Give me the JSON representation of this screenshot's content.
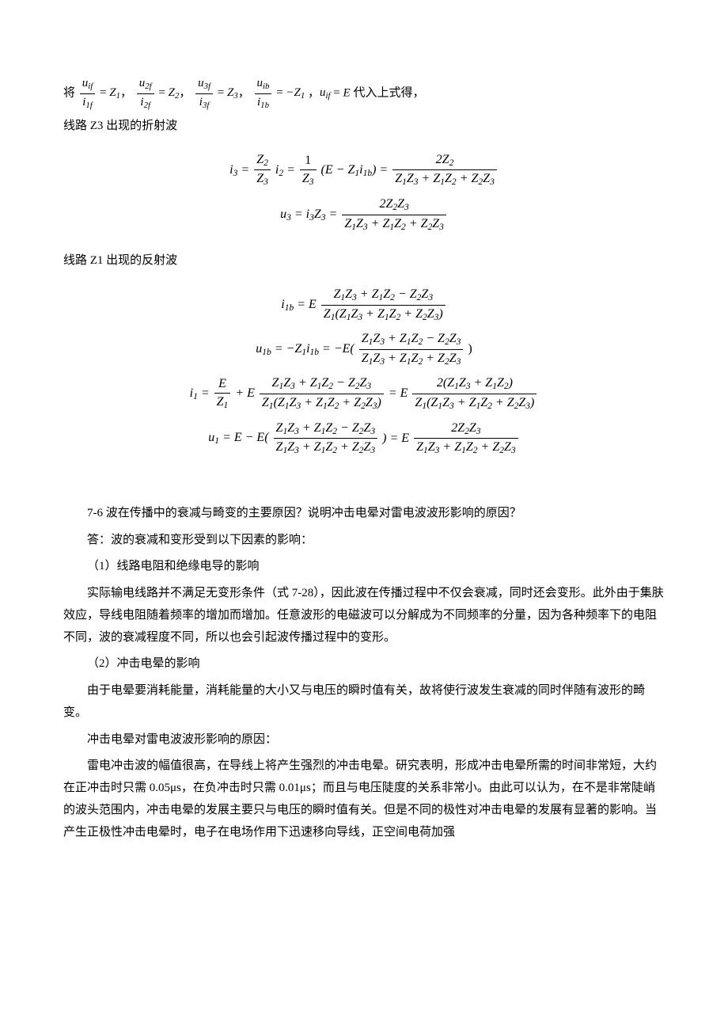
{
  "colors": {
    "text": "#000000",
    "background": "#ffffff"
  },
  "typography": {
    "body_font": "SimSun",
    "math_font": "Times New Roman",
    "body_size_pt": 11,
    "math_size_pt": 12
  },
  "intro_line": {
    "prefix": "将",
    "terms": [
      {
        "num": "u<sub>if</sub>",
        "den": "i<sub>1f</sub>",
        "rhs": "Z<sub>1</sub>"
      },
      {
        "num": "u<sub>2f</sub>",
        "den": "i<sub>2f</sub>",
        "rhs": "Z<sub>2</sub>"
      },
      {
        "num": "u<sub>3f</sub>",
        "den": "i<sub>3f</sub>",
        "rhs": "Z<sub>3</sub>"
      },
      {
        "num": "u<sub>ib</sub>",
        "den": "i<sub>1b</sub>",
        "rhs": "−Z<sub>1</sub>"
      }
    ],
    "tail": "，<span class=\"italic\">u<sub>if</sub></span> = <span class=\"italic\">E</span> 代入上式得，"
  },
  "label_z3": "线路 Z3 出现的折射波",
  "eq_z3_a": {
    "lhs": "i<sub>3</sub> =",
    "frac1": {
      "num": "Z<sub>2</sub>",
      "den": "Z<sub>3</sub>"
    },
    "mid1": "i<sub>2</sub> =",
    "frac2": {
      "num": "1",
      "den": "Z<sub>3</sub>"
    },
    "mid2": "(E − Z<sub>1</sub>i<sub>1b</sub>) =",
    "frac3": {
      "num": "2Z<sub>2</sub>",
      "den": "Z<sub>1</sub>Z<sub>3</sub> + Z<sub>1</sub>Z<sub>2</sub> + Z<sub>2</sub>Z<sub>3</sub>"
    }
  },
  "eq_z3_b": {
    "lhs": "u<sub>3</sub> = i<sub>3</sub>Z<sub>3</sub> =",
    "frac": {
      "num": "2Z<sub>2</sub>Z<sub>3</sub>",
      "den": "Z<sub>1</sub>Z<sub>3</sub> + Z<sub>1</sub>Z<sub>2</sub> + Z<sub>2</sub>Z<sub>3</sub>"
    }
  },
  "label_z1": "线路 Z1 出现的反射波",
  "eq_z1_a": {
    "lhs": "i<sub>1b</sub> = E",
    "frac": {
      "num": "Z<sub>1</sub>Z<sub>3</sub> + Z<sub>1</sub>Z<sub>2</sub> − Z<sub>2</sub>Z<sub>3</sub>",
      "den": "Z<sub>1</sub>(Z<sub>1</sub>Z<sub>3</sub> + Z<sub>1</sub>Z<sub>2</sub> + Z<sub>2</sub>Z<sub>3</sub>)"
    }
  },
  "eq_z1_b": {
    "lhs": "u<sub>1b</sub> = −Z<sub>1</sub>i<sub>1b</sub> = −E(",
    "frac": {
      "num": "Z<sub>1</sub>Z<sub>3</sub> + Z<sub>1</sub>Z<sub>2</sub> − Z<sub>2</sub>Z<sub>3</sub>",
      "den": "Z<sub>1</sub>Z<sub>3</sub> + Z<sub>1</sub>Z<sub>2</sub> + Z<sub>2</sub>Z<sub>3</sub>"
    },
    "tail": ")"
  },
  "eq_z1_c": {
    "lhs": "i<sub>1</sub> =",
    "frac1": {
      "num": "E",
      "den": "Z<sub>1</sub>"
    },
    "mid1": "+ E",
    "frac2": {
      "num": "Z<sub>1</sub>Z<sub>3</sub> + Z<sub>1</sub>Z<sub>2</sub> − Z<sub>2</sub>Z<sub>3</sub>",
      "den": "Z<sub>1</sub>(Z<sub>1</sub>Z<sub>3</sub> + Z<sub>1</sub>Z<sub>2</sub> + Z<sub>2</sub>Z<sub>3</sub>)"
    },
    "mid2": "= E",
    "frac3": {
      "num": "2(Z<sub>1</sub>Z<sub>3</sub> + Z<sub>1</sub>Z<sub>2</sub>)",
      "den": "Z<sub>1</sub>(Z<sub>1</sub>Z<sub>3</sub> + Z<sub>1</sub>Z<sub>2</sub> + Z<sub>2</sub>Z<sub>3</sub>)"
    }
  },
  "eq_z1_d": {
    "lhs": "u<sub>1</sub> = E − E(",
    "frac1": {
      "num": "Z<sub>1</sub>Z<sub>3</sub> + Z<sub>1</sub>Z<sub>2</sub> − Z<sub>2</sub>Z<sub>3</sub>",
      "den": "Z<sub>1</sub>Z<sub>3</sub> + Z<sub>1</sub>Z<sub>2</sub> + Z<sub>2</sub>Z<sub>3</sub>"
    },
    "mid": ") = E",
    "frac2": {
      "num": "2Z<sub>2</sub>Z<sub>3</sub>",
      "den": "Z<sub>1</sub>Z<sub>3</sub> + Z<sub>1</sub>Z<sub>2</sub> + Z<sub>2</sub>Z<sub>3</sub>"
    }
  },
  "q76": "7-6 波在传播中的衰减与畸变的主要原因？说明冲击电晕对雷电波波形影响的原因？",
  "ans_lead": "答：波的衰减和变形受到以下因素的影响：",
  "sec1_title": "（1）线路电阻和绝缘电导的影响",
  "sec1_body": "实际输电线路并不满足无变形条件（式 7-28），因此波在传播过程中不仅会衰减，同时还会变形。此外由于集肤效应，导线电阻随着频率的增加而增加。任意波形的电磁波可以分解成为不同频率的分量，因为各种频率下的电阻不同，波的衰减程度不同，所以也会引起波传播过程中的变形。",
  "sec2_title": "（2）冲击电晕的影响",
  "sec2_body": "由于电晕要消耗能量，消耗能量的大小又与电压的瞬时值有关，故将使行波发生衰减的同时伴随有波形的畸变。",
  "reason_title": "冲击电晕对雷电波波形影响的原因：",
  "reason_body_a": "雷电冲击波的幅值很高，在导线上将产生强烈的冲击电晕。研究表明，形成冲击电晕所需的时间非常短，大约在正冲击时只需 0.05",
  "reason_body_b": "，在负冲击时只需 0.01",
  "reason_body_c": "；而且与电压陡度的关系非常小。由此可以认为，在不是非常陡峭的波头范围内，冲击电晕的发展主要只与电压的瞬时值有关。但是不同的极性对冲击电晕的发展有显著的影响。当产生正极性冲击电晕时，电子在电场作用下迅速移向导线，正空间电荷加强",
  "unit_us": "μs"
}
